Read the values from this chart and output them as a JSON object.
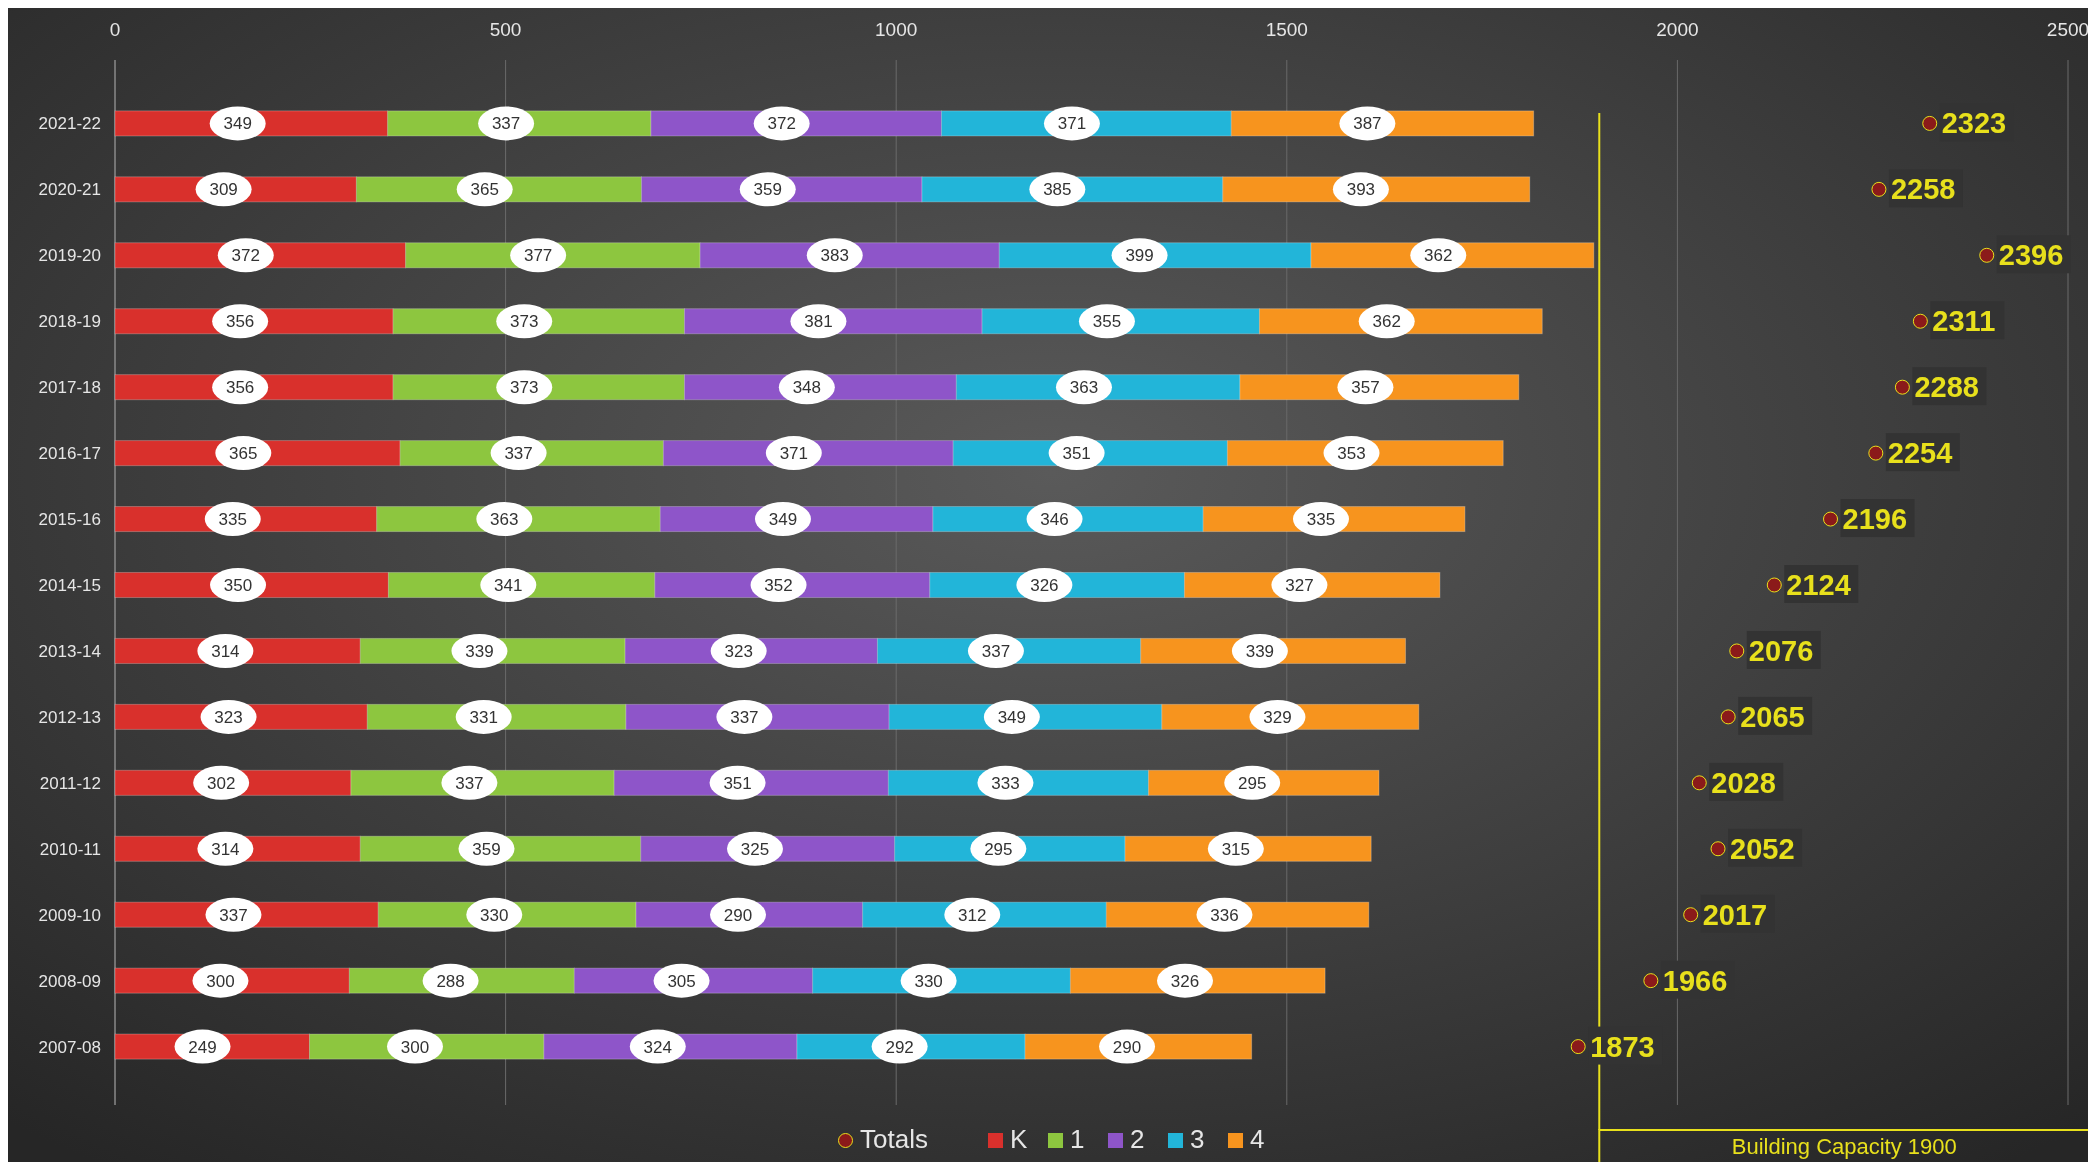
{
  "chart_data": {
    "type": "bar",
    "orientation": "horizontal",
    "stacked": true,
    "data_labels": true,
    "grid": "x",
    "legend": "bottom",
    "categories": [
      "2021-22",
      "2020-21",
      "2019-20",
      "2018-19",
      "2017-18",
      "2016-17",
      "2015-16",
      "2014-15",
      "2013-14",
      "2012-13",
      "2011-12",
      "2010-11",
      "2009-10",
      "2008-09",
      "2007-08"
    ],
    "xlim": [
      0,
      2500
    ],
    "xticks": [
      0,
      500,
      1000,
      1500,
      2000,
      2500
    ],
    "series": [
      {
        "name": "Totals",
        "type": "scatter",
        "color": "#8b1a1a",
        "values": [
          2323,
          2258,
          2396,
          2311,
          2288,
          2254,
          2196,
          2124,
          2076,
          2065,
          2028,
          2052,
          2017,
          1966,
          1873
        ]
      },
      {
        "name": "K",
        "color": "#d9302c",
        "values": [
          349,
          309,
          372,
          356,
          356,
          365,
          335,
          350,
          314,
          323,
          302,
          314,
          337,
          300,
          249
        ]
      },
      {
        "name": "1",
        "color": "#8dc63f",
        "values": [
          337,
          365,
          377,
          373,
          373,
          337,
          363,
          341,
          339,
          331,
          337,
          359,
          330,
          288,
          300
        ]
      },
      {
        "name": "2",
        "color": "#8e55c9",
        "values": [
          372,
          359,
          383,
          381,
          348,
          371,
          349,
          352,
          323,
          337,
          351,
          325,
          290,
          305,
          324
        ]
      },
      {
        "name": "3",
        "color": "#22b5d9",
        "values": [
          371,
          385,
          399,
          355,
          363,
          351,
          346,
          326,
          337,
          349,
          333,
          295,
          312,
          330,
          292
        ]
      },
      {
        "name": "4",
        "color": "#f7941e",
        "values": [
          387,
          393,
          362,
          362,
          357,
          353,
          335,
          327,
          339,
          329,
          295,
          315,
          336,
          326,
          290
        ]
      }
    ],
    "marker": "circle",
    "ref_lines": [
      {
        "axis": "x",
        "value": 1900,
        "label": "Building Capacity 1900",
        "color": "#e8e01c"
      }
    ]
  }
}
